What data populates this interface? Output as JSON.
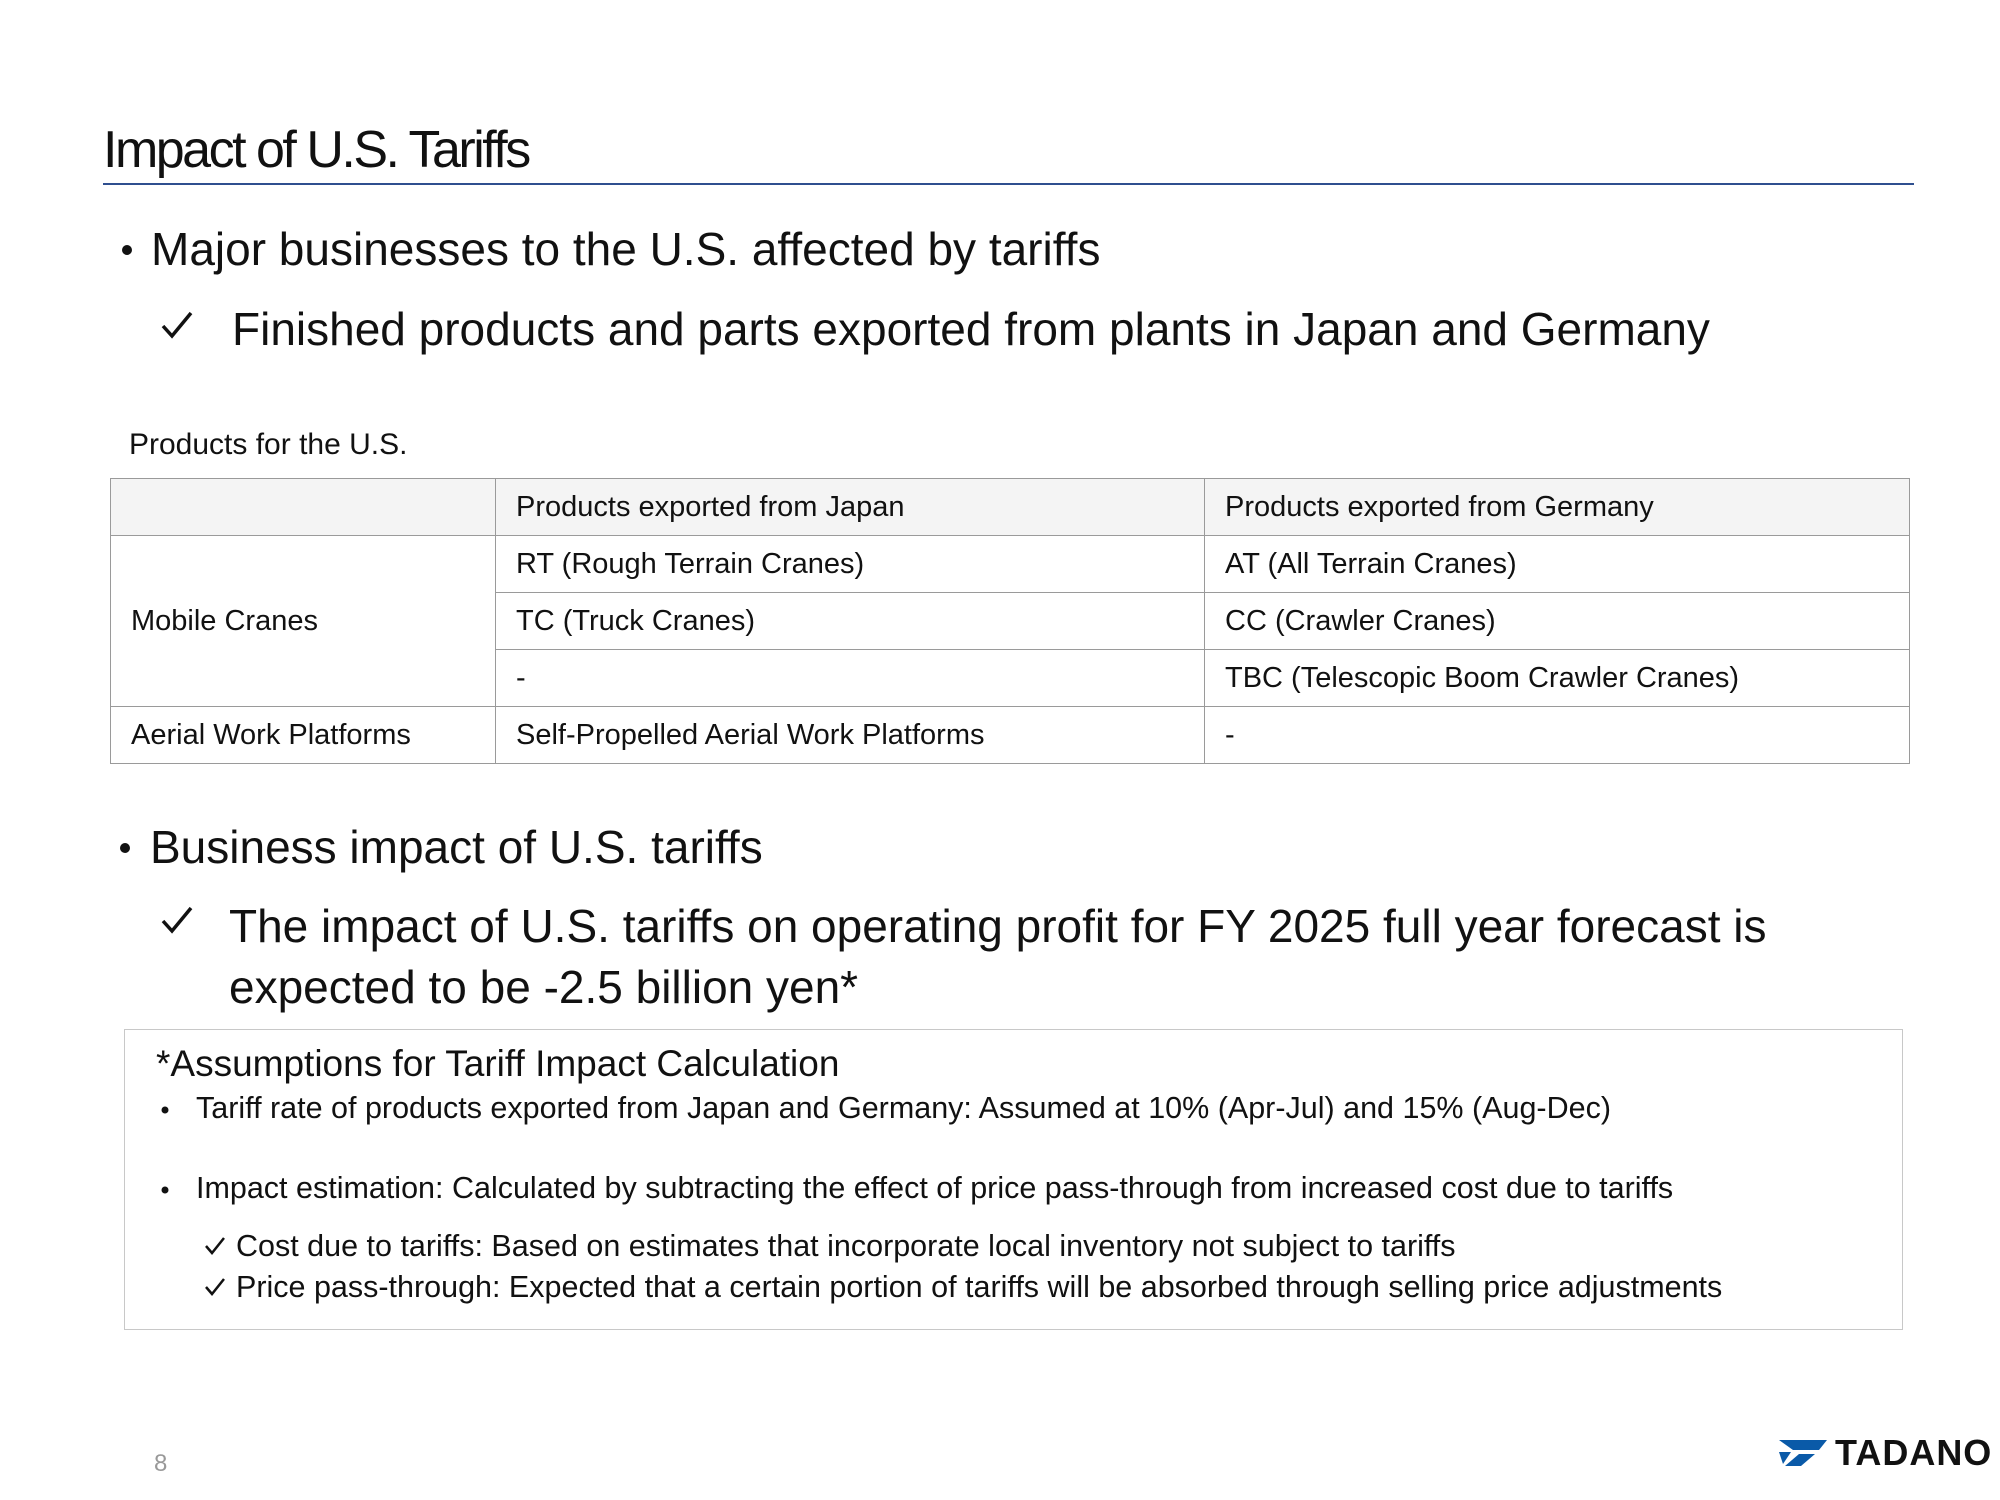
{
  "header": {
    "title": "Impact of U.S. Tariffs"
  },
  "bullets": [
    {
      "text": "Major businesses to the U.S. affected by tariffs",
      "checks": [
        "Finished products and parts exported from plants in Japan and Germany"
      ]
    },
    {
      "text": "Business impact of U.S. tariffs",
      "checks": [
        "The impact of U.S. tariffs on operating profit for FY 2025 full year forecast is expected to be -2.5 billion yen*"
      ]
    }
  ],
  "table": {
    "caption": "Products for the U.S.",
    "columns": [
      "Products exported from Japan",
      "Products exported from Germany"
    ],
    "groups": [
      {
        "label": "Mobile Cranes",
        "rows": [
          [
            "RT (Rough Terrain Cranes)",
            "AT (All Terrain Cranes)"
          ],
          [
            "TC (Truck Cranes)",
            "CC (Crawler Cranes)"
          ],
          [
            "-",
            "TBC (Telescopic Boom Crawler Cranes)"
          ]
        ]
      },
      {
        "label": "Aerial Work Platforms",
        "rows": [
          [
            "Self-Propelled Aerial Work Platforms",
            "-"
          ]
        ]
      }
    ]
  },
  "note": {
    "title": "*Assumptions for Tariff Impact Calculation",
    "items": [
      "Tariff rate of products exported from Japan and Germany: Assumed at 10% (Apr-Jul) and 15% (Aug-Dec)",
      "Impact estimation: Calculated by subtracting the effect of price pass-through from increased cost due to tariffs"
    ],
    "checks": [
      "Cost due to tariffs: Based on estimates that incorporate local inventory not subject to tariffs",
      "Price pass-through: Expected that a certain portion of tariffs will be absorbed through selling price adjustments"
    ]
  },
  "footer": {
    "page": "8",
    "logo": "TADANO"
  }
}
